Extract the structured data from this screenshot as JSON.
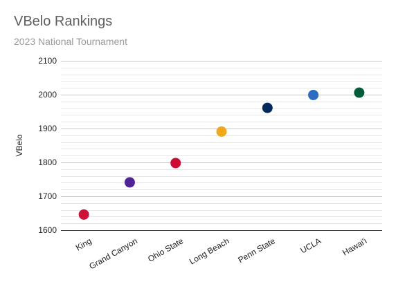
{
  "chart_data": {
    "type": "scatter",
    "title": "VBelo Rankings",
    "subtitle": "2023 National Tournament",
    "xlabel": "",
    "ylabel": "VBelo",
    "ylim": [
      1600,
      2100
    ],
    "yticks": [
      1600,
      1700,
      1800,
      1900,
      2000,
      2100
    ],
    "grid": true,
    "legend": "none",
    "points": [
      {
        "x": "King",
        "y": 1646,
        "color": "#cc1238"
      },
      {
        "x": "Grand Canyon",
        "y": 1741,
        "color": "#522398"
      },
      {
        "x": "Ohio State",
        "y": 1798,
        "color": "#cc0a33"
      },
      {
        "x": "Long Beach",
        "y": 1891,
        "color": "#f0a81c"
      },
      {
        "x": "Penn State",
        "y": 1961,
        "color": "#03285c"
      },
      {
        "x": "UCLA",
        "y": 1999,
        "color": "#2d6cc0"
      },
      {
        "x": "Hawai'i",
        "y": 2006,
        "color": "#015c3c"
      }
    ]
  }
}
